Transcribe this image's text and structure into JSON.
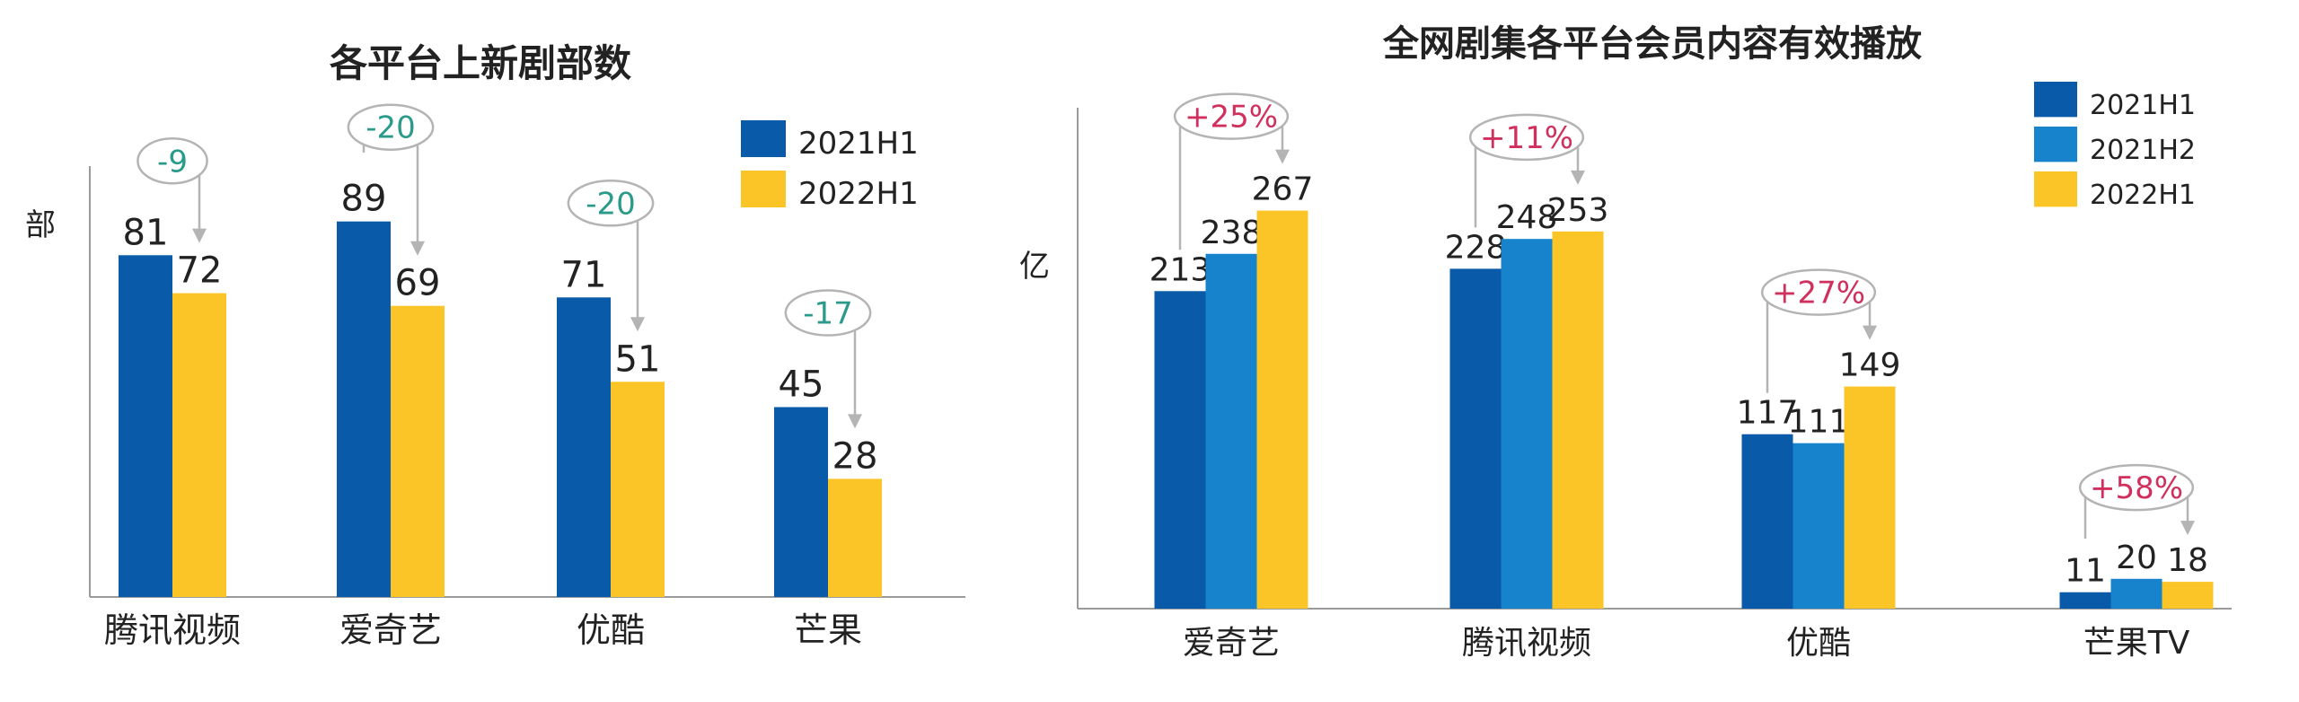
{
  "colors": {
    "h1_2021": "#0a5aaa",
    "h2_2021": "#1883cd",
    "h1_2022": "#fbc528",
    "axis": "#9a9a9a",
    "bracket": "#b4b4b4",
    "delta_left": "#2a9a8a",
    "delta_right": "#d0305e",
    "text": "#222222"
  },
  "chart_data": [
    {
      "type": "bar",
      "title": "各平台上新剧部数",
      "ylabel": "部",
      "xlabel": "",
      "categories": [
        "腾讯视频",
        "爱奇艺",
        "优酷",
        "芒果"
      ],
      "series": [
        {
          "name": "2021H1",
          "color_key": "h1_2021",
          "values": [
            81,
            89,
            71,
            45
          ]
        },
        {
          "name": "2022H1",
          "color_key": "h1_2022",
          "values": [
            72,
            69,
            51,
            28
          ]
        }
      ],
      "annotations": [
        {
          "text": "-9",
          "from_series": 0,
          "to_series": 1
        },
        {
          "text": "-20",
          "from_series": 0,
          "to_series": 1
        },
        {
          "text": "-20",
          "from_series": 0,
          "to_series": 1
        },
        {
          "text": "-17",
          "from_series": 0,
          "to_series": 1
        }
      ],
      "ylim": [
        0,
        100
      ],
      "grid": false,
      "legend_position": "top-right"
    },
    {
      "type": "bar",
      "title": "全网剧集各平台会员内容有效播放",
      "ylabel": "亿",
      "xlabel": "",
      "categories": [
        "爱奇艺",
        "腾讯视频",
        "优酷",
        "芒果TV"
      ],
      "series": [
        {
          "name": "2021H1",
          "color_key": "h1_2021",
          "values": [
            213,
            228,
            117,
            11
          ]
        },
        {
          "name": "2021H2",
          "color_key": "h2_2021",
          "values": [
            238,
            248,
            111,
            20
          ]
        },
        {
          "name": "2022H1",
          "color_key": "h1_2022",
          "values": [
            267,
            253,
            149,
            18
          ]
        }
      ],
      "annotations": [
        {
          "text": "+25%",
          "from_series": 0,
          "to_series": 2
        },
        {
          "text": "+11%",
          "from_series": 0,
          "to_series": 2
        },
        {
          "text": "+27%",
          "from_series": 0,
          "to_series": 2
        },
        {
          "text": "+58%",
          "from_series": 0,
          "to_series": 2
        }
      ],
      "ylim": [
        0,
        330
      ],
      "grid": false,
      "legend_position": "top-right"
    }
  ]
}
